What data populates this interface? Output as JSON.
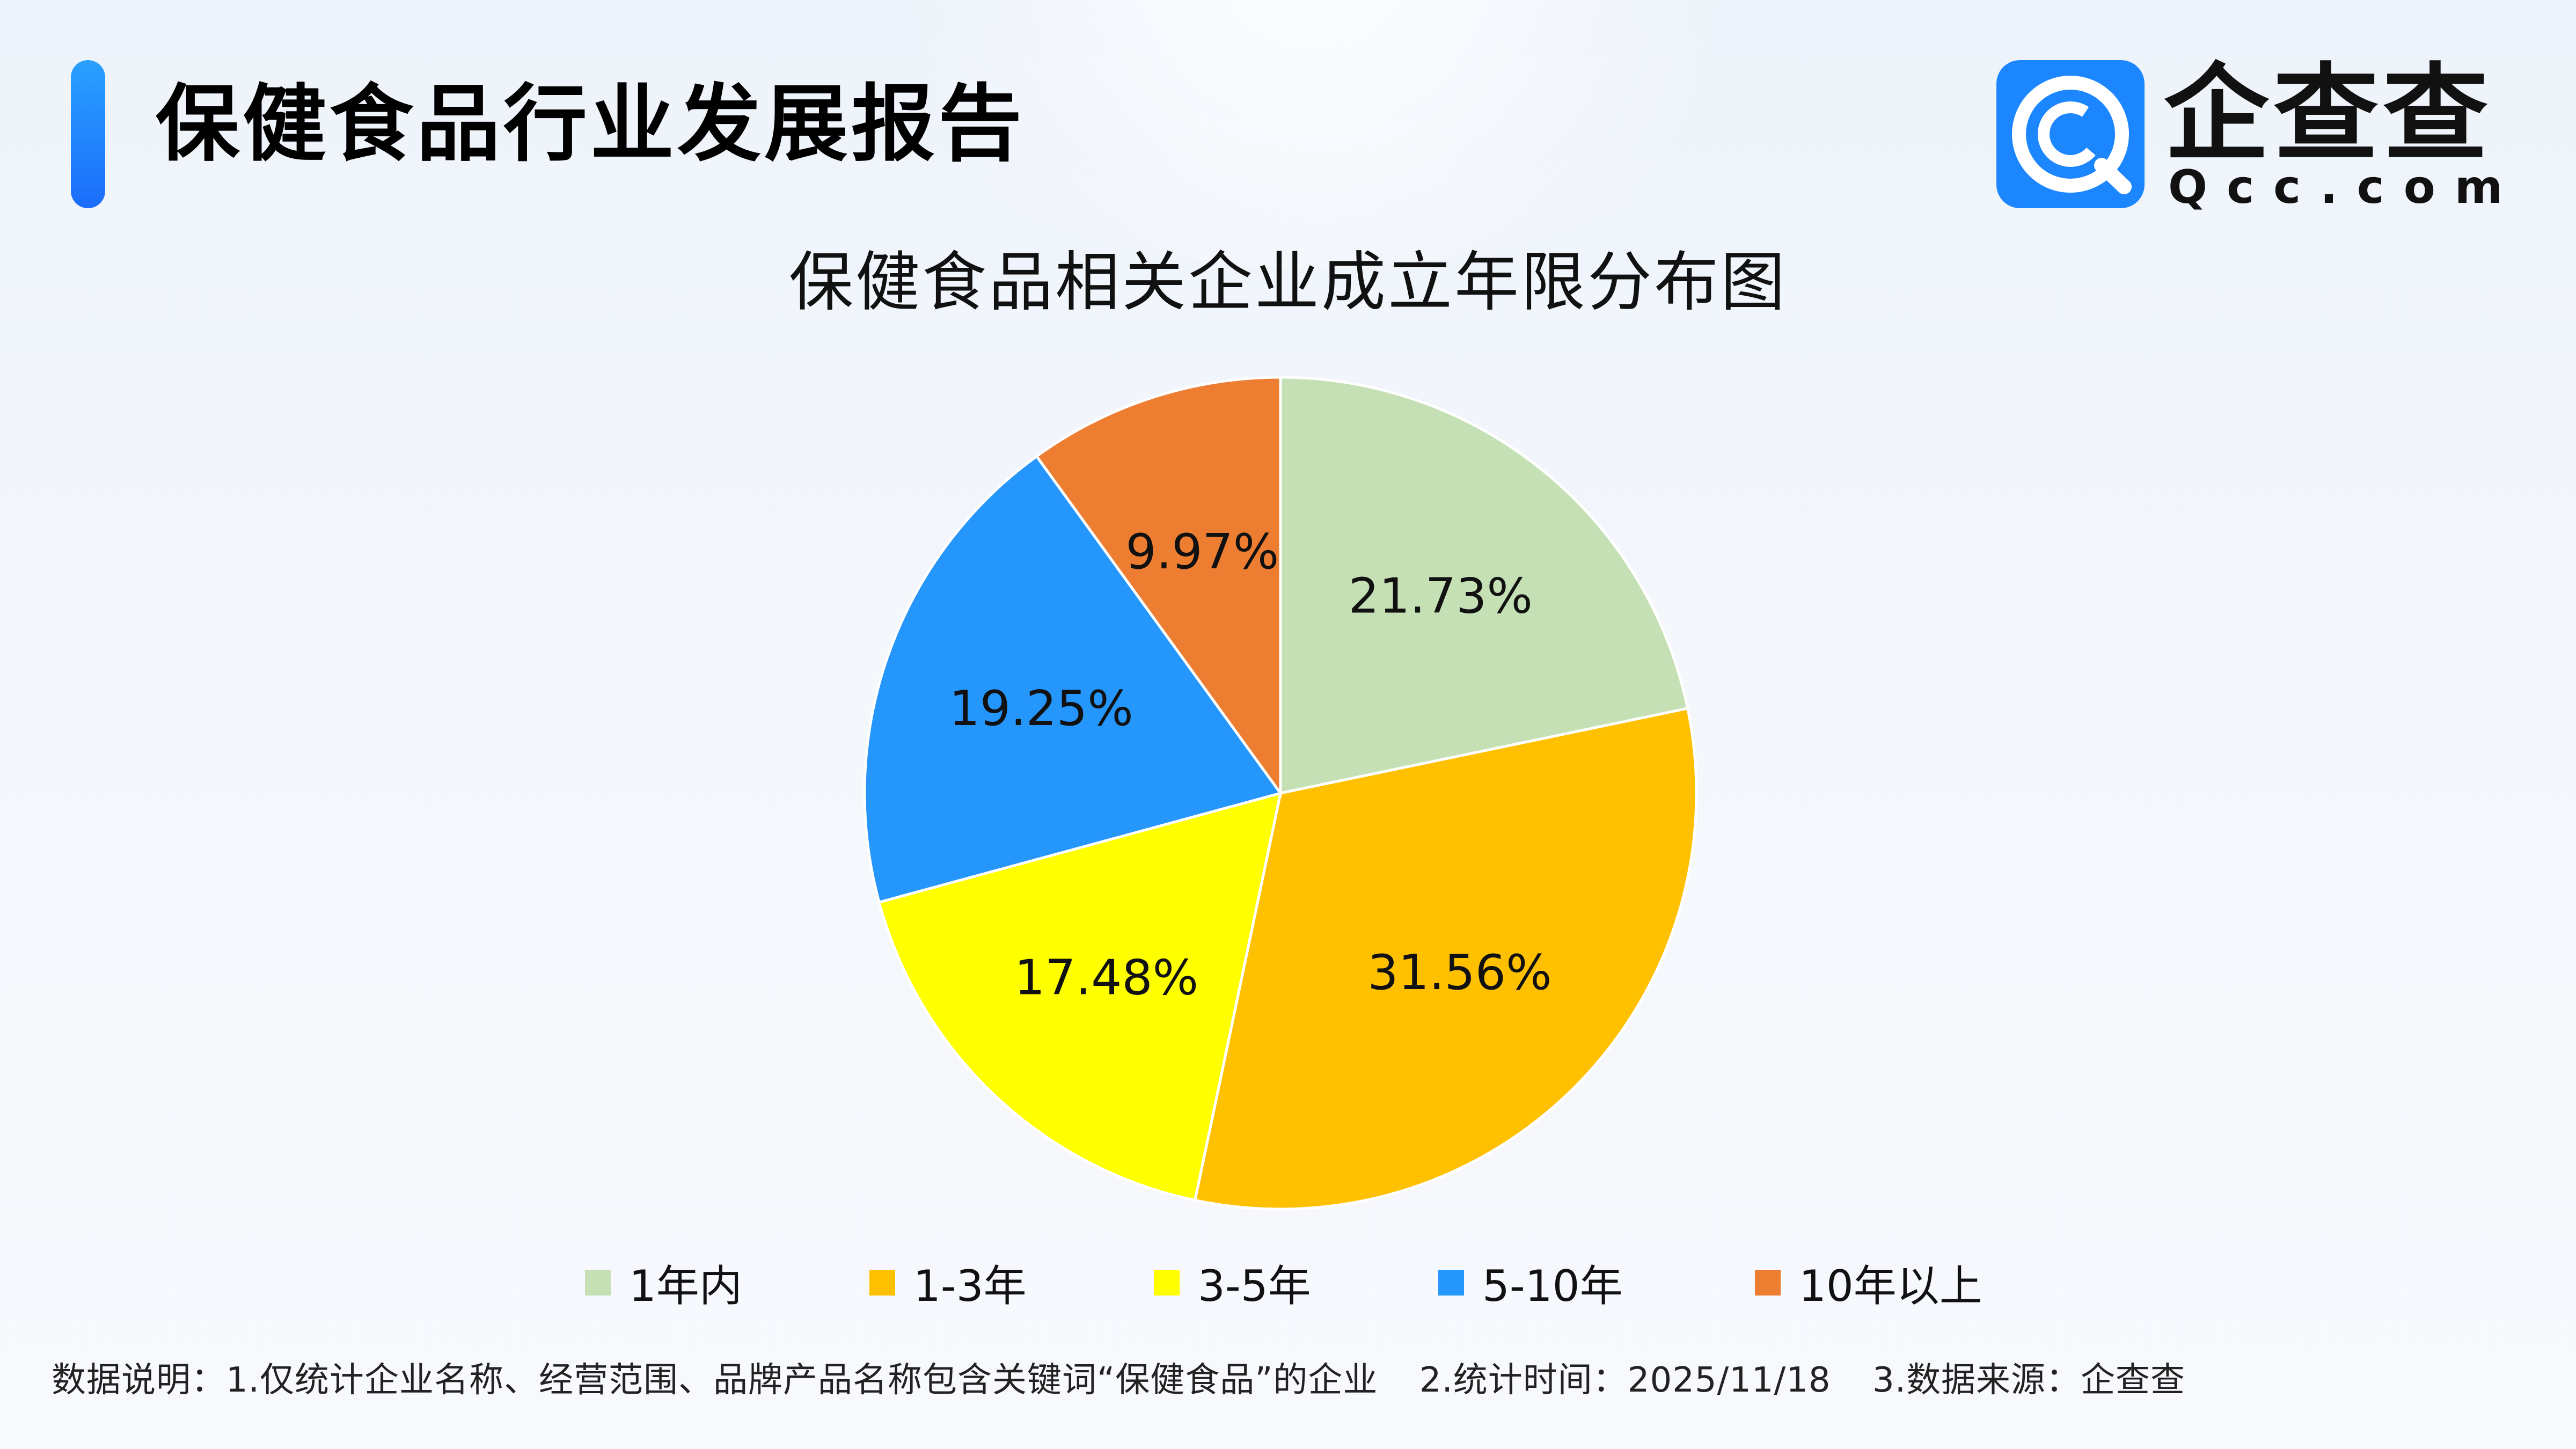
{
  "header": {
    "title": "保健食品行业发展报告"
  },
  "logo": {
    "name": "企查查",
    "url": "Qcc.com",
    "icon": "qcc-logo-icon",
    "color": "#1c86ff"
  },
  "chart_data": {
    "type": "pie",
    "title": "保健食品相关企业成立年限分布图",
    "legend_position": "bottom",
    "start_angle": "12 o'clock, clockwise",
    "categories": [
      "1年内",
      "1-3年",
      "3-5年",
      "5-10年",
      "10年以上"
    ],
    "values": [
      21.73,
      31.56,
      17.48,
      19.25,
      9.97
    ],
    "labels": [
      "21.73%",
      "31.56%",
      "17.48%",
      "19.25%",
      "9.97%"
    ],
    "colors": [
      "#c5e0b4",
      "#ffc000",
      "#ffff00",
      "#2596fc",
      "#ed7d31"
    ]
  },
  "footnote": {
    "note1": "数据说明：1.仅统计企业名称、经营范围、品牌产品名称包含关键词“保健食品”的企业",
    "note2": "2.统计时间：2025/11/18",
    "note3": "3.数据来源：企查查"
  }
}
